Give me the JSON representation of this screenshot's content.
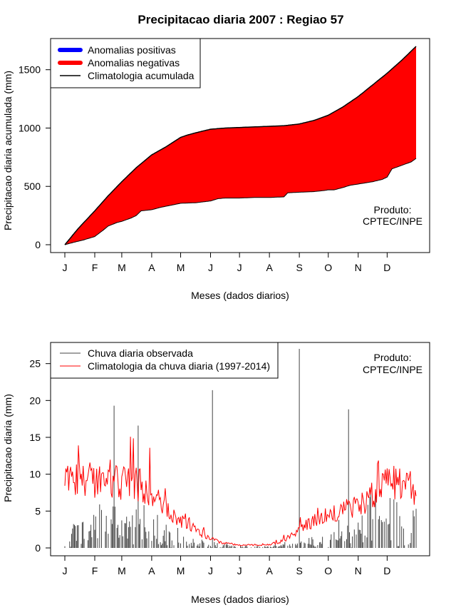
{
  "page_title": "Precipitacao diaria 2007 : Regiao 57",
  "chart_data": [
    {
      "type": "area",
      "name": "accumulated",
      "xlabel": "Meses (dados diarios)",
      "ylabel": "Precipitacao diaria acumulada (mm)",
      "xlim": [
        1,
        365
      ],
      "ylim": [
        0,
        1700
      ],
      "yticks": [
        0,
        500,
        1000,
        1500
      ],
      "month_ticks": [
        {
          "label": "J",
          "day": 1
        },
        {
          "label": "F",
          "day": 32
        },
        {
          "label": "M",
          "day": 60
        },
        {
          "label": "A",
          "day": 91
        },
        {
          "label": "M",
          "day": 121
        },
        {
          "label": "J",
          "day": 152
        },
        {
          "label": "J",
          "day": 182
        },
        {
          "label": "A",
          "day": 213
        },
        {
          "label": "S",
          "day": 244
        },
        {
          "label": "O",
          "day": 274
        },
        {
          "label": "N",
          "day": 305
        },
        {
          "label": "D",
          "day": 335
        }
      ],
      "legend": [
        {
          "label": "Anomalias positivas",
          "color": "#0000ff",
          "style": "thick"
        },
        {
          "label": "Anomalias negativas",
          "color": "#ff0000",
          "style": "thick"
        },
        {
          "label": "Climatologia acumulada",
          "color": "#000000",
          "style": "line"
        }
      ],
      "credit": [
        "Produto:",
        "CPTEC/INPE"
      ],
      "climatology_accumulated": {
        "day": [
          1,
          15,
          32,
          46,
          60,
          75,
          91,
          106,
          121,
          128,
          137,
          152,
          167,
          182,
          198,
          213,
          228,
          244,
          259,
          274,
          289,
          305,
          320,
          335,
          350,
          365
        ],
        "value": [
          0,
          140,
          290,
          420,
          540,
          660,
          770,
          840,
          920,
          940,
          960,
          990,
          1000,
          1005,
          1010,
          1015,
          1020,
          1035,
          1065,
          1110,
          1180,
          1270,
          1370,
          1470,
          1580,
          1700
        ]
      },
      "observed_accumulated": {
        "day": [
          1,
          10,
          20,
          32,
          40,
          46,
          55,
          60,
          70,
          75,
          80,
          91,
          100,
          106,
          115,
          121,
          137,
          152,
          160,
          167,
          182,
          198,
          213,
          228,
          232,
          244,
          259,
          270,
          274,
          280,
          289,
          297,
          305,
          320,
          330,
          335,
          340,
          350,
          360,
          365
        ],
        "value": [
          0,
          20,
          40,
          70,
          120,
          160,
          190,
          200,
          230,
          250,
          290,
          300,
          320,
          330,
          345,
          355,
          360,
          375,
          395,
          400,
          400,
          405,
          405,
          410,
          445,
          450,
          455,
          465,
          470,
          470,
          490,
          510,
          520,
          540,
          560,
          580,
          650,
          680,
          710,
          740
        ]
      }
    },
    {
      "type": "bar+line",
      "name": "daily",
      "xlabel": "Meses (dados diarios)",
      "ylabel": "Precipitacao diaria (mm)",
      "xlim": [
        1,
        365
      ],
      "ylim": [
        0,
        27
      ],
      "yticks": [
        0,
        5,
        10,
        15,
        20,
        25
      ],
      "legend": [
        {
          "label": "Chuva diaria observada",
          "color": "#444444",
          "style": "line"
        },
        {
          "label": "Climatologia da chuva diaria (1997-2014)",
          "color": "#ff0000",
          "style": "line"
        }
      ],
      "credit": [
        "Produto:",
        "CPTEC/INPE"
      ],
      "observed_peaks": {
        "day": [
          52,
          77,
          154,
          244,
          295
        ],
        "value": [
          19.3,
          16.6,
          21.4,
          27.0,
          18.8
        ]
      },
      "climatology_daily_envelope": {
        "day": [
          1,
          15,
          32,
          46,
          60,
          75,
          91,
          106,
          121,
          137,
          152,
          167,
          182,
          198,
          213,
          228,
          244,
          259,
          274,
          289,
          305,
          320,
          335,
          350,
          365
        ],
        "value": [
          8.5,
          9.0,
          9.0,
          9.0,
          8.5,
          8.5,
          7.5,
          5.5,
          3.5,
          2.5,
          1.2,
          0.6,
          0.4,
          0.4,
          0.4,
          1.0,
          2.5,
          3.5,
          4.5,
          5.0,
          5.5,
          7.0,
          8.5,
          9.0,
          7.5
        ]
      },
      "observed_daily_envelope": {
        "day": [
          1,
          32,
          60,
          91,
          106,
          121,
          137,
          152,
          182,
          213,
          244,
          274,
          305,
          335,
          365
        ],
        "value": [
          3.5,
          4.5,
          4.5,
          3.0,
          2.5,
          1.5,
          1.0,
          0.8,
          0.2,
          0.3,
          0.6,
          1.5,
          3.5,
          5.0,
          4.0
        ]
      }
    }
  ]
}
